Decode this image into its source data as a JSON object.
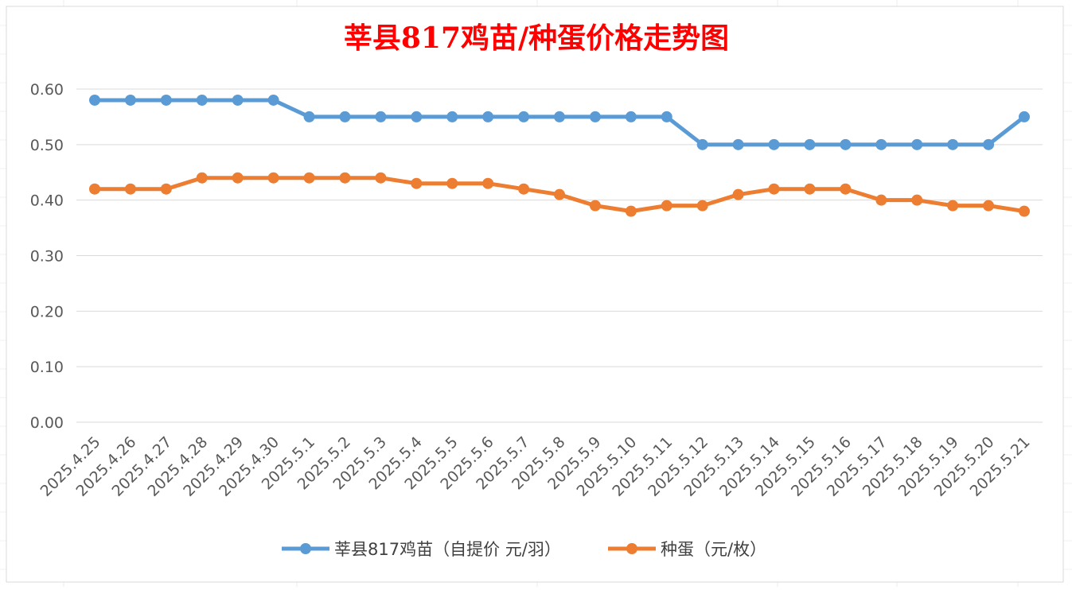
{
  "chart_data": {
    "type": "line",
    "title": "莘县817鸡苗/种蛋价格走势图",
    "categories": [
      "2025.4.25",
      "2025.4.26",
      "2025.4.27",
      "2025.4.28",
      "2025.4.29",
      "2025.4.30",
      "2025.5.1",
      "2025.5.2",
      "2025.5.3",
      "2025.5.4",
      "2025.5.5",
      "2025.5.6",
      "2025.5.7",
      "2025.5.8",
      "2025.5.9",
      "2025.5.10",
      "2025.5.11",
      "2025.5.12",
      "2025.5.13",
      "2025.5.14",
      "2025.5.15",
      "2025.5.16",
      "2025.5.17",
      "2025.5.18",
      "2025.5.19",
      "2025.5.20",
      "2025.5.21"
    ],
    "series": [
      {
        "name": "莘县817鸡苗（自提价 元/羽）",
        "color": "#5b9bd5",
        "values": [
          0.58,
          0.58,
          0.58,
          0.58,
          0.58,
          0.58,
          0.55,
          0.55,
          0.55,
          0.55,
          0.55,
          0.55,
          0.55,
          0.55,
          0.55,
          0.55,
          0.55,
          0.5,
          0.5,
          0.5,
          0.5,
          0.5,
          0.5,
          0.5,
          0.5,
          0.5,
          0.55
        ]
      },
      {
        "name": "种蛋（元/枚）",
        "color": "#ed7d31",
        "values": [
          0.42,
          0.42,
          0.42,
          0.44,
          0.44,
          0.44,
          0.44,
          0.44,
          0.44,
          0.43,
          0.43,
          0.43,
          0.42,
          0.41,
          0.39,
          0.38,
          0.39,
          0.39,
          0.41,
          0.42,
          0.42,
          0.42,
          0.4,
          0.4,
          0.39,
          0.39,
          0.38
        ]
      }
    ],
    "y_ticks": [
      "0.00",
      "0.10",
      "0.20",
      "0.30",
      "0.40",
      "0.50",
      "0.60"
    ],
    "ylim": [
      0,
      0.6
    ],
    "grid": true,
    "legend_position": "bottom",
    "xlabel": "",
    "ylabel": ""
  }
}
